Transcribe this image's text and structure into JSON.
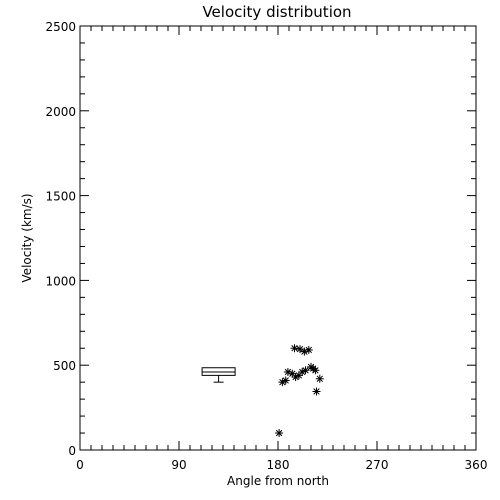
{
  "chart_data": {
    "type": "scatter",
    "title": "Velocity distribution",
    "xlabel": "Angle from north",
    "ylabel": "Velocity (km/s)",
    "xlim": [
      0,
      360
    ],
    "ylim": [
      0,
      2500
    ],
    "x_ticks": [
      0,
      90,
      180,
      270,
      360
    ],
    "y_ticks": [
      0,
      500,
      1000,
      1500,
      2000,
      2500
    ],
    "x_tick_labels": [
      "0",
      "90",
      "180",
      "270",
      "360"
    ],
    "y_tick_labels": [
      "0",
      "500",
      "1000",
      "1500",
      "2000",
      "2500"
    ],
    "x_minor_step": 10,
    "y_minor_step": 100,
    "grid": false,
    "marker": "asterisk",
    "points": [
      {
        "x": 181,
        "y": 100
      },
      {
        "x": 184,
        "y": 400
      },
      {
        "x": 187,
        "y": 410
      },
      {
        "x": 189,
        "y": 460
      },
      {
        "x": 193,
        "y": 450
      },
      {
        "x": 195,
        "y": 600
      },
      {
        "x": 196,
        "y": 430
      },
      {
        "x": 199,
        "y": 440
      },
      {
        "x": 200,
        "y": 595
      },
      {
        "x": 202,
        "y": 460
      },
      {
        "x": 204,
        "y": 580
      },
      {
        "x": 205,
        "y": 470
      },
      {
        "x": 208,
        "y": 590
      },
      {
        "x": 210,
        "y": 490
      },
      {
        "x": 212,
        "y": 480
      },
      {
        "x": 214,
        "y": 470
      },
      {
        "x": 215,
        "y": 345
      },
      {
        "x": 218,
        "y": 420
      }
    ],
    "boxplot": {
      "x_left": 111,
      "x_right": 141,
      "q1": 440,
      "median": 460,
      "q3": 485,
      "whisker_low": 400,
      "whisker_high": 485
    }
  }
}
